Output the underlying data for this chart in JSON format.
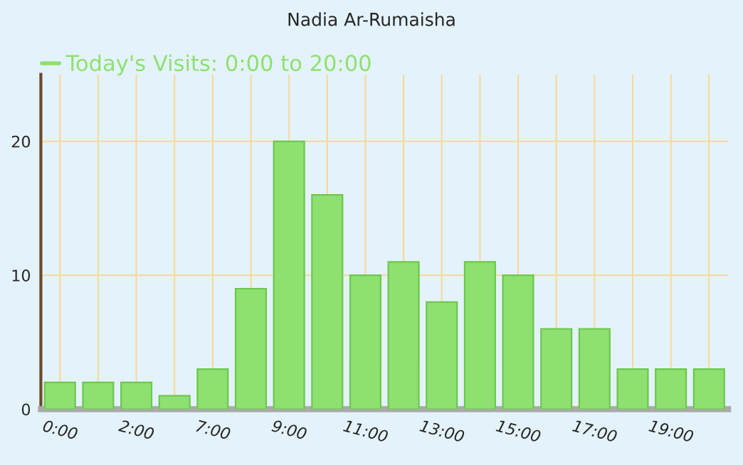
{
  "chart_data": {
    "type": "bar",
    "title": "Nadia Ar-Rumaisha",
    "categories": [
      "0:00",
      null,
      "2:00",
      null,
      "7:00",
      null,
      "9:00",
      null,
      "11:00",
      null,
      "13:00",
      null,
      "15:00",
      null,
      "17:00",
      null,
      "19:00",
      null
    ],
    "series": [
      {
        "name": "Today's Visits: 0:00 to 20:00",
        "color": "#8ee070",
        "values": [
          2,
          2,
          2,
          1,
          3,
          9,
          20,
          16,
          10,
          11,
          8,
          11,
          10,
          6,
          6,
          3,
          3,
          3
        ]
      }
    ],
    "ylim": [
      0,
      25
    ],
    "yticks": [
      0,
      10,
      20
    ],
    "grid": true,
    "legend": "top left"
  }
}
